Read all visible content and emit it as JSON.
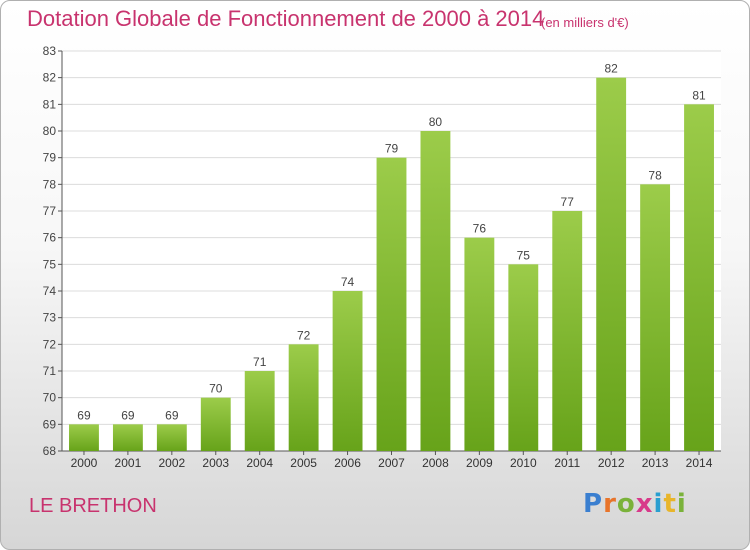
{
  "header": {
    "title": "Dotation Globale de Fonctionnement de 2000 à 2014",
    "subtitle": "(en milliers d'€)"
  },
  "footer": {
    "commune": "LE BRETHON",
    "logo_text": "Proxiti",
    "logo_colors": [
      "#3a7fd0",
      "#e8742a",
      "#7ab23a",
      "#d83a8a",
      "#2a9fd0",
      "#e8b52a",
      "#7ab23a"
    ]
  },
  "colors": {
    "bar_top": "#9ccc4a",
    "bar_bottom": "#67a31a",
    "text": "#c8336e",
    "axis": "#555555",
    "grid": "#dcdcdc"
  },
  "chart_data": {
    "type": "bar",
    "title": "Dotation Globale de Fonctionnement de 2000 à 2014",
    "subtitle": "(en milliers d'€)",
    "xlabel": "",
    "ylabel": "",
    "categories": [
      "2000",
      "2001",
      "2002",
      "2003",
      "2004",
      "2005",
      "2006",
      "2007",
      "2008",
      "2009",
      "2010",
      "2011",
      "2012",
      "2013",
      "2014"
    ],
    "values": [
      69,
      69,
      69,
      70,
      71,
      72,
      74,
      79,
      80,
      76,
      75,
      77,
      82,
      78,
      81
    ],
    "ylim": [
      68,
      83
    ],
    "yticks": [
      68,
      69,
      70,
      71,
      72,
      73,
      74,
      75,
      76,
      77,
      78,
      79,
      80,
      81,
      82,
      83
    ],
    "grid": true,
    "data_labels": true
  }
}
